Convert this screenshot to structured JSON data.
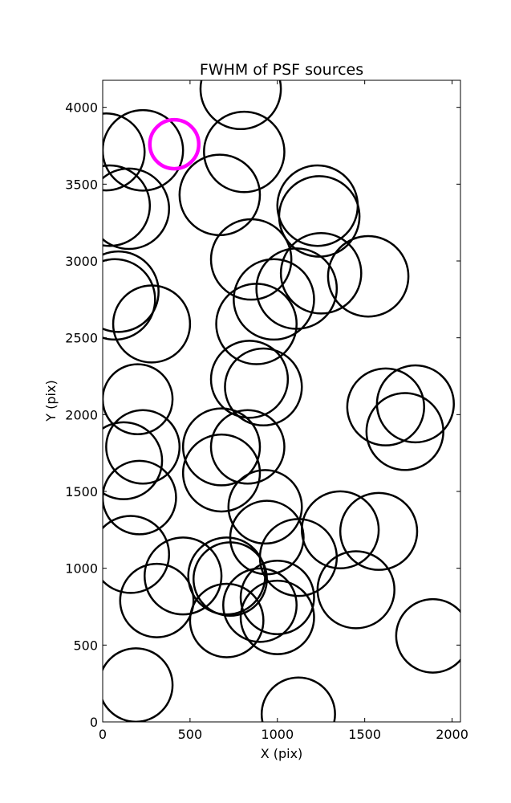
{
  "chart_data": {
    "type": "scatter",
    "title": "FWHM of PSF sources",
    "xlabel": "X (pix)",
    "ylabel": "Y (pix)",
    "xlim": [
      0,
      2048
    ],
    "ylim": [
      0,
      4176
    ],
    "x_ticks": [
      0,
      500,
      1000,
      1500,
      2000
    ],
    "y_ticks": [
      0,
      500,
      1000,
      1500,
      2000,
      2500,
      3000,
      3500,
      4000
    ],
    "grid": false,
    "legend": "none",
    "marker": "circle-outline",
    "series": [
      {
        "color": "#000000",
        "points": [
          {
            "x": 790,
            "y": 4120,
            "r": 230
          },
          {
            "x": 230,
            "y": 3720,
            "r": 230
          },
          {
            "x": 810,
            "y": 3710,
            "r": 230
          },
          {
            "x": 20,
            "y": 3710,
            "r": 220
          },
          {
            "x": 670,
            "y": 3430,
            "r": 230
          },
          {
            "x": 150,
            "y": 3340,
            "r": 230
          },
          {
            "x": 40,
            "y": 3360,
            "r": 230
          },
          {
            "x": 1230,
            "y": 3360,
            "r": 230
          },
          {
            "x": 1240,
            "y": 3290,
            "r": 230
          },
          {
            "x": 850,
            "y": 3010,
            "r": 230
          },
          {
            "x": 1250,
            "y": 2920,
            "r": 230
          },
          {
            "x": 1520,
            "y": 2900,
            "r": 230
          },
          {
            "x": 1110,
            "y": 2820,
            "r": 230
          },
          {
            "x": 980,
            "y": 2750,
            "r": 230
          },
          {
            "x": 90,
            "y": 2800,
            "r": 230
          },
          {
            "x": 70,
            "y": 2750,
            "r": 230
          },
          {
            "x": 280,
            "y": 2590,
            "r": 220
          },
          {
            "x": 880,
            "y": 2590,
            "r": 230
          },
          {
            "x": 840,
            "y": 2230,
            "r": 220
          },
          {
            "x": 920,
            "y": 2180,
            "r": 220
          },
          {
            "x": 200,
            "y": 2100,
            "r": 200
          },
          {
            "x": 1620,
            "y": 2050,
            "r": 220
          },
          {
            "x": 1790,
            "y": 2070,
            "r": 220
          },
          {
            "x": 1730,
            "y": 1890,
            "r": 220
          },
          {
            "x": 680,
            "y": 1790,
            "r": 220
          },
          {
            "x": 230,
            "y": 1790,
            "r": 210
          },
          {
            "x": 120,
            "y": 1700,
            "r": 220
          },
          {
            "x": 830,
            "y": 1790,
            "r": 210
          },
          {
            "x": 680,
            "y": 1620,
            "r": 220
          },
          {
            "x": 210,
            "y": 1460,
            "r": 210
          },
          {
            "x": 930,
            "y": 1400,
            "r": 210
          },
          {
            "x": 1360,
            "y": 1250,
            "r": 220
          },
          {
            "x": 1580,
            "y": 1240,
            "r": 220
          },
          {
            "x": 940,
            "y": 1200,
            "r": 210
          },
          {
            "x": 160,
            "y": 1090,
            "r": 220
          },
          {
            "x": 1120,
            "y": 1070,
            "r": 220
          },
          {
            "x": 460,
            "y": 950,
            "r": 220
          },
          {
            "x": 710,
            "y": 950,
            "r": 220
          },
          {
            "x": 730,
            "y": 930,
            "r": 210
          },
          {
            "x": 1450,
            "y": 860,
            "r": 220
          },
          {
            "x": 1000,
            "y": 810,
            "r": 210
          },
          {
            "x": 310,
            "y": 790,
            "r": 210
          },
          {
            "x": 900,
            "y": 760,
            "r": 210
          },
          {
            "x": 710,
            "y": 660,
            "r": 210
          },
          {
            "x": 1000,
            "y": 680,
            "r": 210
          },
          {
            "x": 1890,
            "y": 560,
            "r": 210
          },
          {
            "x": 190,
            "y": 240,
            "r": 210
          },
          {
            "x": 1120,
            "y": 50,
            "r": 210
          }
        ]
      },
      {
        "color": "#ff00ff",
        "points": [
          {
            "x": 410,
            "y": 3760,
            "r": 140
          }
        ]
      }
    ]
  }
}
